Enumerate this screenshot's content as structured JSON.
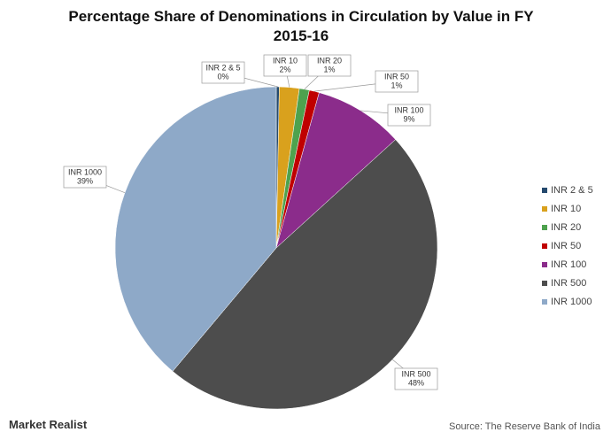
{
  "chart_data": {
    "type": "pie",
    "title": "Percentage Share of Denominations in Circulation by Value in FY 2015-16",
    "categories": [
      "INR 2 & 5",
      "INR 10",
      "INR 20",
      "INR 50",
      "INR 100",
      "INR 500",
      "INR 1000"
    ],
    "values": [
      0.3,
      2,
      1,
      1,
      9,
      48,
      39
    ],
    "value_labels": [
      "0%",
      "2%",
      "1%",
      "1%",
      "9%",
      "48%",
      "39%"
    ],
    "colors": [
      "#254a6e",
      "#d9a11d",
      "#4ea24e",
      "#c00000",
      "#8b2c8b",
      "#4d4d4d",
      "#8ea9c8"
    ],
    "legend": "right",
    "brand": "Market Realist",
    "source": "Source: The Reserve Bank of India"
  }
}
